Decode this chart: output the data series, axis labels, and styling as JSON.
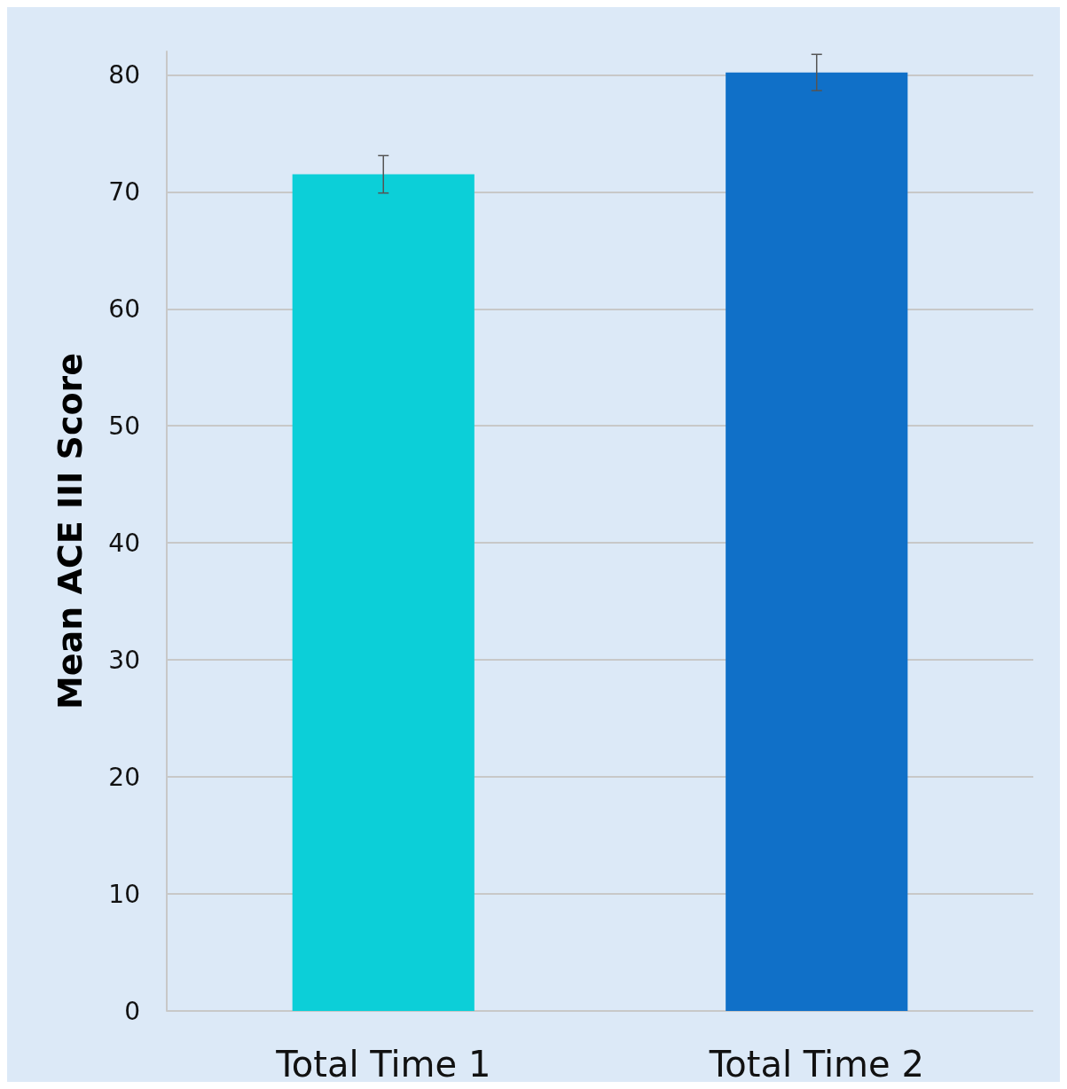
{
  "chart_data": {
    "type": "bar",
    "ylabel": "Mean ACE III Score",
    "categories": [
      "Total Time 1",
      "Total Time 2"
    ],
    "values": [
      71.5,
      80.2
    ],
    "colors": [
      "#0ccfd8",
      "#1070c8"
    ],
    "errors": [
      1.6,
      1.55
    ],
    "ylim": [
      0,
      82
    ],
    "yticks": [
      0,
      10,
      20,
      30,
      40,
      50,
      60,
      70,
      80
    ],
    "grid": "y"
  }
}
